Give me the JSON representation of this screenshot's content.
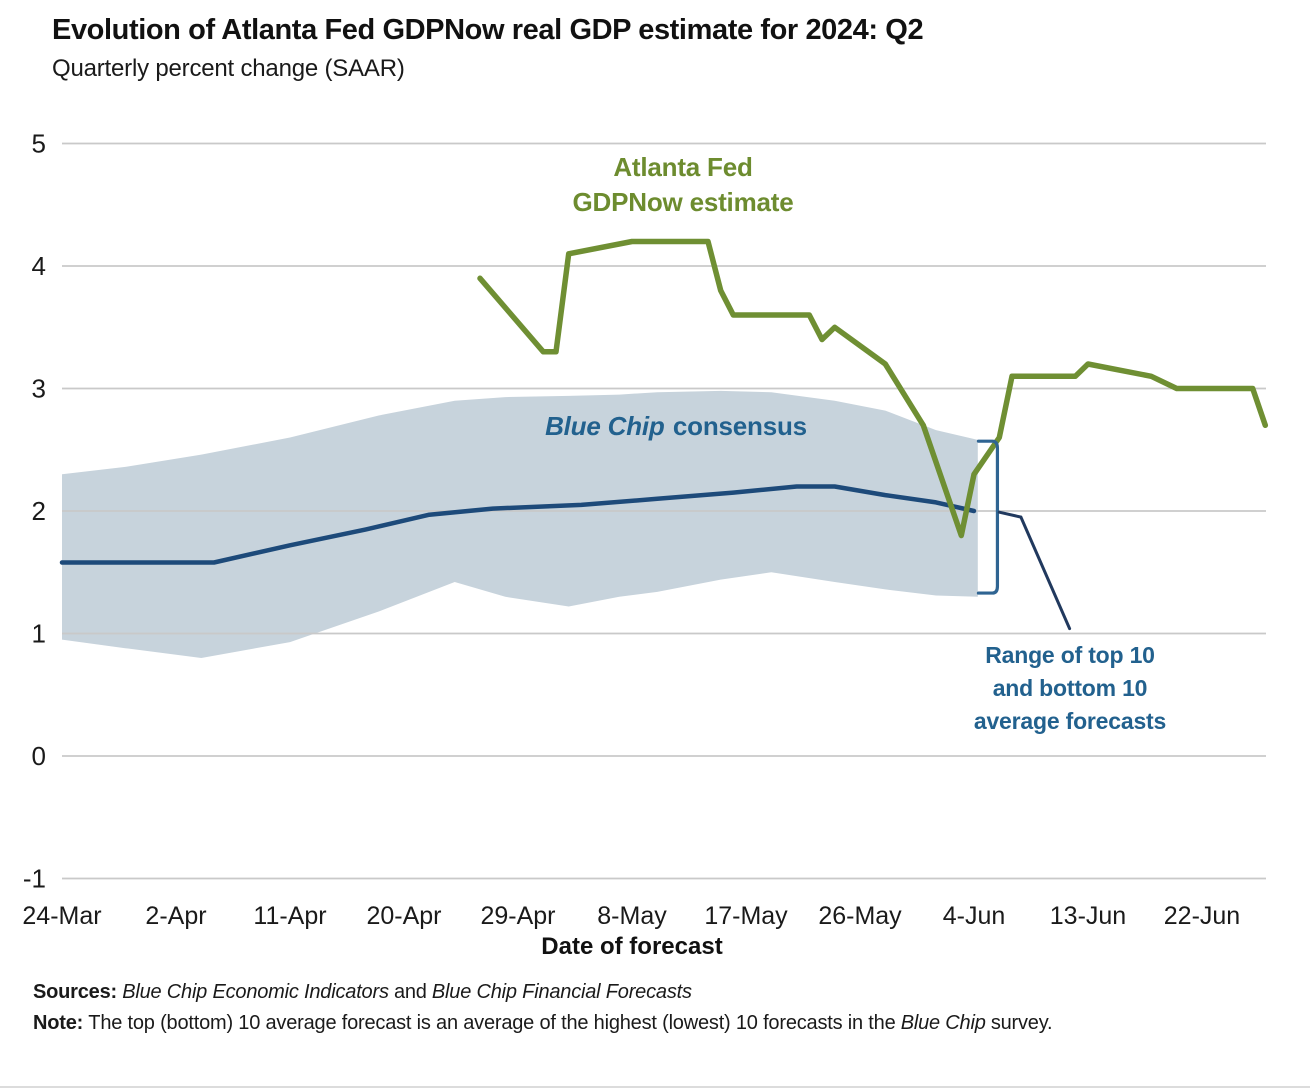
{
  "header": {
    "title": "Evolution of Atlanta Fed GDPNow real GDP estimate for 2024: Q2",
    "subtitle": "Quarterly percent change (SAAR)"
  },
  "colors": {
    "green_line": "#6f8f33",
    "green_text": "#6d8c2f",
    "blue_line": "#1d4a7a",
    "band_fill": "#c7d3dc",
    "blue_text": "#22618e",
    "bracket": "#2f6492",
    "leader": "#21395e",
    "gridline": "#c9c9c9",
    "text": "#1a1a1a"
  },
  "labels": {
    "gdpnow_line1": "Atlanta Fed",
    "gdpnow_line2": "GDPNow estimate",
    "bluechip_italic": "Blue Chip",
    "bluechip_rest": "consensus",
    "range_lines": [
      "Range of top 10",
      "and bottom 10",
      "average forecasts"
    ]
  },
  "footer": {
    "sources_prefix": "Sources:",
    "sources_italic1": "Blue Chip Economic Indicators",
    "sources_and": "and",
    "sources_italic2": "Blue Chip Financial Forecasts",
    "note_prefix": "Note:",
    "note_body": "The top (bottom) 10 average forecast is an average of the highest (lowest) 10 forecasts in the",
    "note_italic": "Blue Chip",
    "note_suffix": "survey."
  },
  "chart_data": {
    "type": "line",
    "title": "Evolution of Atlanta Fed GDPNow real GDP estimate for 2024: Q2",
    "subtitle": "Quarterly percent change (SAAR)",
    "xlabel": "Date of forecast",
    "ylabel": "Quarterly percent change (SAAR)",
    "ylim": [
      -1,
      5
    ],
    "grid": true,
    "y_ticks": [
      5,
      4,
      3,
      2,
      1,
      0,
      -1
    ],
    "x_ticks": [
      {
        "label": "24-Mar",
        "day": 0
      },
      {
        "label": "2-Apr",
        "day": 9
      },
      {
        "label": "11-Apr",
        "day": 18
      },
      {
        "label": "20-Apr",
        "day": 27
      },
      {
        "label": "29-Apr",
        "day": 36
      },
      {
        "label": "8-May",
        "day": 45
      },
      {
        "label": "17-May",
        "day": 54
      },
      {
        "label": "26-May",
        "day": 63
      },
      {
        "label": "4-Jun",
        "day": 72
      },
      {
        "label": "13-Jun",
        "day": 81
      },
      {
        "label": "22-Jun",
        "day": 90
      }
    ],
    "series": [
      {
        "id": "bluechip-consensus-line",
        "name": "Blue Chip consensus",
        "color": "#1d4a7a",
        "width": 4.5,
        "points": [
          {
            "date": "24-Mar",
            "day": 0,
            "value": 1.58
          },
          {
            "date": "5-Apr",
            "day": 12,
            "value": 1.58
          },
          {
            "date": "11-Apr",
            "day": 18,
            "value": 1.72
          },
          {
            "date": "17-Apr",
            "day": 24,
            "value": 1.85
          },
          {
            "date": "22-Apr",
            "day": 29,
            "value": 1.97
          },
          {
            "date": "27-Apr",
            "day": 34,
            "value": 2.02
          },
          {
            "date": "4-May",
            "day": 41,
            "value": 2.05
          },
          {
            "date": "10-May",
            "day": 47,
            "value": 2.1
          },
          {
            "date": "16-May",
            "day": 53,
            "value": 2.15
          },
          {
            "date": "21-May",
            "day": 58,
            "value": 2.2
          },
          {
            "date": "24-May",
            "day": 61,
            "value": 2.2
          },
          {
            "date": "28-May",
            "day": 65,
            "value": 2.13
          },
          {
            "date": "1-Jun",
            "day": 69,
            "value": 2.07
          },
          {
            "date": "4-Jun",
            "day": 72,
            "value": 2.0
          }
        ]
      },
      {
        "id": "gdpnow-line",
        "name": "Atlanta Fed GDPNow estimate",
        "color": "#6f8f33",
        "width": 5.5,
        "points": [
          {
            "date": "26-Apr",
            "day": 33,
            "value": 3.9
          },
          {
            "date": "1-May",
            "day": 38,
            "value": 3.3
          },
          {
            "date": "2-May",
            "day": 39,
            "value": 3.3
          },
          {
            "date": "3-May",
            "day": 40,
            "value": 4.1
          },
          {
            "date": "8-May",
            "day": 45,
            "value": 4.2
          },
          {
            "date": "14-May",
            "day": 51,
            "value": 4.2
          },
          {
            "date": "15-May",
            "day": 52,
            "value": 3.8
          },
          {
            "date": "16-May",
            "day": 53,
            "value": 3.6
          },
          {
            "date": "22-May",
            "day": 59,
            "value": 3.6
          },
          {
            "date": "23-May",
            "day": 60,
            "value": 3.4
          },
          {
            "date": "24-May",
            "day": 61,
            "value": 3.5
          },
          {
            "date": "28-May",
            "day": 65,
            "value": 3.2
          },
          {
            "date": "31-May",
            "day": 68,
            "value": 2.7
          },
          {
            "date": "3-Jun",
            "day": 71,
            "value": 1.8
          },
          {
            "date": "4-Jun",
            "day": 72,
            "value": 2.3
          },
          {
            "date": "6-Jun",
            "day": 74,
            "value": 2.6
          },
          {
            "date": "7-Jun",
            "day": 75,
            "value": 3.1
          },
          {
            "date": "12-Jun",
            "day": 80,
            "value": 3.1
          },
          {
            "date": "13-Jun",
            "day": 81,
            "value": 3.2
          },
          {
            "date": "18-Jun",
            "day": 86,
            "value": 3.1
          },
          {
            "date": "20-Jun",
            "day": 88,
            "value": 3.0
          },
          {
            "date": "26-Jun",
            "day": 94,
            "value": 3.0
          },
          {
            "date": "27-Jun",
            "day": 95,
            "value": 2.7
          }
        ]
      }
    ],
    "band": {
      "name": "Range of top 10 and bottom 10 average forecasts",
      "fill": "#c7d3dc",
      "points": [
        {
          "day": 0,
          "top": 2.3,
          "bottom": 0.95
        },
        {
          "day": 5,
          "top": 2.36,
          "bottom": 0.88
        },
        {
          "day": 11,
          "top": 2.46,
          "bottom": 0.8
        },
        {
          "day": 18,
          "top": 2.6,
          "bottom": 0.93
        },
        {
          "day": 25,
          "top": 2.78,
          "bottom": 1.18
        },
        {
          "day": 31,
          "top": 2.9,
          "bottom": 1.42
        },
        {
          "day": 35,
          "top": 2.93,
          "bottom": 1.3
        },
        {
          "day": 40,
          "top": 2.94,
          "bottom": 1.22
        },
        {
          "day": 44,
          "top": 2.95,
          "bottom": 1.3
        },
        {
          "day": 47,
          "top": 2.97,
          "bottom": 1.34
        },
        {
          "day": 52,
          "top": 2.98,
          "bottom": 1.44
        },
        {
          "day": 56,
          "top": 2.97,
          "bottom": 1.5
        },
        {
          "day": 61,
          "top": 2.9,
          "bottom": 1.42
        },
        {
          "day": 65,
          "top": 2.82,
          "bottom": 1.36
        },
        {
          "day": 69,
          "top": 2.66,
          "bottom": 1.31
        },
        {
          "day": 72.3,
          "top": 2.58,
          "bottom": 1.3
        }
      ]
    },
    "bracket": {
      "x_day": 73.85,
      "serif_day": 72.35,
      "top": 2.57,
      "bottom": 1.33
    },
    "leader": [
      [
        74.0,
        1.99
      ],
      [
        75.7,
        1.95
      ],
      [
        79.55,
        1.04
      ]
    ]
  }
}
